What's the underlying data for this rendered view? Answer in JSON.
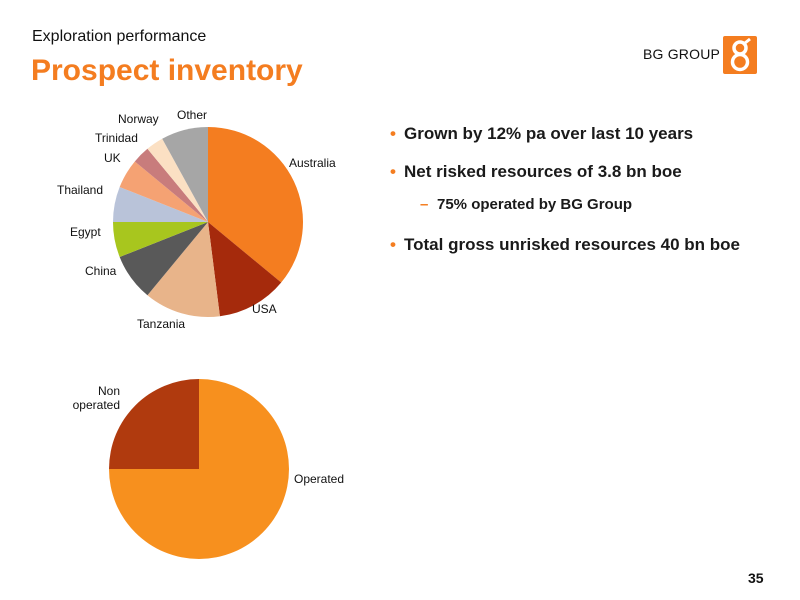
{
  "header": {
    "subtitle": "Exploration performance",
    "title": "Prospect inventory",
    "brand": "BG GROUP",
    "brand_color": "#f47d20"
  },
  "bullets": [
    "Grown by 12% pa over last 10 years",
    "Net risked resources of 3.8 bn boe",
    "Total gross unrisked resources 40 bn boe"
  ],
  "sub_bullet": "75% operated by BG Group",
  "page_number": "35",
  "chart_data": [
    {
      "type": "pie",
      "title": "",
      "categories": [
        "Australia",
        "USA",
        "Tanzania",
        "China",
        "Egypt",
        "Thailand",
        "UK",
        "Trinidad",
        "Norway",
        "Other"
      ],
      "values": [
        36,
        12,
        13,
        8,
        6,
        6,
        5,
        3,
        3,
        8
      ],
      "colors": [
        "#f47d20",
        "#a52a0c",
        "#e8b48a",
        "#595959",
        "#a8c61e",
        "#b9c3d9",
        "#f5a273",
        "#c87c7c",
        "#fbe0c3",
        "#a6a6a6"
      ]
    },
    {
      "type": "pie",
      "title": "",
      "categories": [
        "Operated",
        "Non\noperated"
      ],
      "values": [
        75,
        25
      ],
      "colors": [
        "#f7901e",
        "#b03a0e"
      ]
    }
  ]
}
